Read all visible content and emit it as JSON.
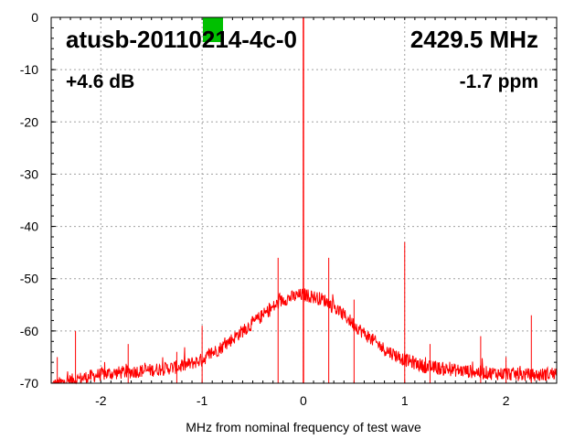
{
  "chart_data": {
    "type": "line",
    "title": "atusb-20110214-4c-0",
    "frequency_label": "2429.5 MHz",
    "gain_label": "+4.6 dB",
    "ppm_label": "-1.7 ppm",
    "xlabel": "MHz from nominal frequency of test wave",
    "ylabel": "",
    "xlim": [
      -2.49,
      2.5
    ],
    "ylim": [
      -70,
      0
    ],
    "grid": true,
    "x_ticks": [
      -2,
      -1,
      0,
      1,
      2
    ],
    "x_tick_labels": [
      "-2",
      "-1",
      "0",
      "1",
      "2"
    ],
    "y_ticks": [
      0,
      -10,
      -20,
      -30,
      -40,
      -50,
      -60,
      -70
    ],
    "y_tick_labels": [
      "0",
      "-10",
      "-20",
      "-30",
      "-40",
      "-50",
      "-60",
      "-70"
    ],
    "series_color": "#ff0000",
    "marker_color": "#00c000",
    "noise_envelope": {
      "x": [
        -2.49,
        -2.3,
        -2.0,
        -1.7,
        -1.5,
        -1.2,
        -1.0,
        -0.8,
        -0.6,
        -0.4,
        -0.2,
        0.0,
        0.2,
        0.4,
        0.6,
        0.8,
        1.0,
        1.2,
        1.5,
        1.8,
        2.0,
        2.3,
        2.5
      ],
      "y": [
        -70.5,
        -69.5,
        -68.3,
        -67.8,
        -67.5,
        -66.8,
        -65.5,
        -63,
        -60,
        -57,
        -54,
        -53,
        -54,
        -57,
        -60.5,
        -63.5,
        -65.5,
        -66.8,
        -67.5,
        -68,
        -68.2,
        -68.5,
        -68
      ]
    },
    "spurs": [
      {
        "x": -2.43,
        "y": -65
      },
      {
        "x": -2.25,
        "y": -60
      },
      {
        "x": -1.73,
        "y": -62.5
      },
      {
        "x": -1.25,
        "y": -64
      },
      {
        "x": -1.0,
        "y": -59
      },
      {
        "x": -0.25,
        "y": -46
      },
      {
        "x": 0.0,
        "y": 0
      },
      {
        "x": 0.25,
        "y": -46
      },
      {
        "x": 0.5,
        "y": -54
      },
      {
        "x": 1.0,
        "y": -43
      },
      {
        "x": 1.25,
        "y": -62.5
      },
      {
        "x": 1.75,
        "y": -61
      },
      {
        "x": 2.0,
        "y": -65
      },
      {
        "x": 2.25,
        "y": -57
      },
      {
        "x": 2.5,
        "y": -61
      }
    ]
  }
}
